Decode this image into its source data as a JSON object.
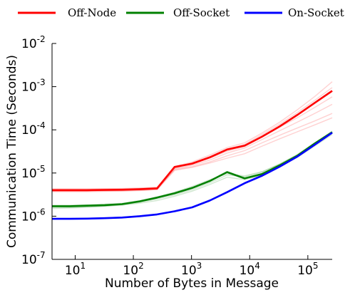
{
  "chart_data": {
    "type": "line",
    "title": "",
    "xlabel": "Number of Bytes in Message",
    "ylabel": "Communication Time (Seconds)",
    "x_scale": "log",
    "y_scale": "log",
    "xlim": [
      4,
      262144
    ],
    "ylim": [
      1e-07,
      0.01
    ],
    "grid": false,
    "legend_position": "top",
    "x_ticks": [
      {
        "value": 10,
        "base": "10",
        "exp": "1"
      },
      {
        "value": 100,
        "base": "10",
        "exp": "2"
      },
      {
        "value": 1000,
        "base": "10",
        "exp": "3"
      },
      {
        "value": 10000,
        "base": "10",
        "exp": "4"
      },
      {
        "value": 100000,
        "base": "10",
        "exp": "5"
      }
    ],
    "y_ticks": [
      {
        "value": 1e-07,
        "base": "10",
        "exp": "-7"
      },
      {
        "value": 1e-06,
        "base": "10",
        "exp": "-6"
      },
      {
        "value": 1e-05,
        "base": "10",
        "exp": "-5"
      },
      {
        "value": 0.0001,
        "base": "10",
        "exp": "-4"
      },
      {
        "value": 0.001,
        "base": "10",
        "exp": "-3"
      },
      {
        "value": 0.01,
        "base": "10",
        "exp": "-2"
      }
    ],
    "x": [
      4,
      8,
      16,
      32,
      64,
      128,
      256,
      512,
      1024,
      2048,
      4096,
      8192,
      16384,
      32768,
      65536,
      131072,
      262144
    ],
    "series": [
      {
        "name": "Off-Node",
        "color": "#ff0000",
        "values": [
          4e-06,
          4e-06,
          4e-06,
          4.05e-06,
          4.1e-06,
          4.2e-06,
          4.4e-06,
          1.38e-05,
          1.65e-05,
          2.3e-05,
          3.5e-05,
          4.3e-05,
          7e-05,
          0.00012,
          0.00022,
          0.00042,
          0.0008
        ]
      },
      {
        "name": "Off-Socket",
        "color": "#008000",
        "values": [
          1.7e-06,
          1.7e-06,
          1.75e-06,
          1.8e-06,
          1.9e-06,
          2.2e-06,
          2.7e-06,
          3.4e-06,
          4.5e-06,
          6.5e-06,
          1.05e-05,
          7.5e-06,
          9.5e-06,
          1.5e-05,
          2.5e-05,
          4.8e-05,
          8.8e-05
        ]
      },
      {
        "name": "On-Socket",
        "color": "#0000ff",
        "values": [
          8.7e-07,
          8.7e-07,
          8.8e-07,
          9e-07,
          9.3e-07,
          1e-06,
          1.1e-06,
          1.3e-06,
          1.6e-06,
          2.3e-06,
          3.6e-06,
          5.8e-06,
          8.7e-06,
          1.4e-05,
          2.4e-05,
          4.5e-05,
          8.6e-05
        ]
      }
    ],
    "faint_series": [
      {
        "color": "#ff0000",
        "values": [
          3.8e-06,
          3.8e-06,
          3.8e-06,
          3.85e-06,
          3.9e-06,
          4e-06,
          4.2e-06,
          1.2e-05,
          1.4e-05,
          1.8e-05,
          2.5e-05,
          3.3e-05,
          5e-05,
          7.5e-05,
          0.00011,
          0.00016,
          0.00024
        ]
      },
      {
        "color": "#ff0000",
        "values": [
          3.9e-06,
          3.9e-06,
          3.9e-06,
          3.95e-06,
          4e-06,
          4.1e-06,
          4.3e-06,
          1.25e-05,
          1.5e-05,
          2e-05,
          2.9e-05,
          3.8e-05,
          6e-05,
          9.5e-05,
          0.00015,
          0.00024,
          0.00039
        ]
      },
      {
        "color": "#ff0000",
        "values": [
          4.1e-06,
          4.1e-06,
          4.1e-06,
          4.15e-06,
          4.2e-06,
          4.3e-06,
          4.5e-06,
          1.3e-05,
          1.6e-05,
          2.2e-05,
          3.2e-05,
          4.1e-05,
          6.8e-05,
          0.000115,
          0.00019,
          0.00033,
          0.00058
        ]
      },
      {
        "color": "#ff0000",
        "values": [
          4.2e-06,
          4.2e-06,
          4.2e-06,
          4.25e-06,
          4.3e-06,
          4.4e-06,
          4.6e-06,
          1.35e-05,
          1.7e-05,
          2.4e-05,
          3.6e-05,
          4.6e-05,
          7.8e-05,
          0.000135,
          0.00025,
          0.00048,
          0.00095
        ]
      },
      {
        "color": "#ff0000",
        "values": [
          4.3e-06,
          4.3e-06,
          4.3e-06,
          4.35e-06,
          4.4e-06,
          4.5e-06,
          4.7e-06,
          1.4e-05,
          1.8e-05,
          2.6e-05,
          3.9e-05,
          5e-05,
          8.5e-05,
          0.00015,
          0.00029,
          0.00059,
          0.0013
        ]
      },
      {
        "color": "#ff0000",
        "values": [
          3.7e-06,
          3.7e-06,
          3.7e-06,
          3.75e-06,
          3.8e-06,
          3.9e-06,
          4.1e-06,
          1.15e-05,
          1.35e-05,
          1.7e-05,
          2.2e-05,
          2.8e-05,
          4.2e-05,
          6.2e-05,
          9e-05,
          0.00013,
          0.00019
        ]
      },
      {
        "color": "#008000",
        "values": [
          1.6e-06,
          1.6e-06,
          1.65e-06,
          1.7e-06,
          1.8e-06,
          2e-06,
          2.3e-06,
          2.9e-06,
          3.8e-06,
          5.4e-06,
          8e-06,
          7e-06,
          9e-06,
          1.4e-05,
          2.3e-05,
          4.2e-05,
          7.8e-05
        ]
      },
      {
        "color": "#008000",
        "values": [
          1.5e-06,
          1.55e-06,
          1.6e-06,
          1.7e-06,
          1.85e-06,
          2.1e-06,
          2.5e-06,
          3.1e-06,
          4.1e-06,
          5.9e-06,
          9e-06,
          8.2e-06,
          1.05e-05,
          1.6e-05,
          2.7e-05,
          5e-05,
          9.4e-05
        ]
      },
      {
        "color": "#008000",
        "values": [
          1.8e-06,
          1.8e-06,
          1.85e-06,
          1.9e-06,
          2e-06,
          2.3e-06,
          2.8e-06,
          3.6e-06,
          4.9e-06,
          7e-06,
          9.6e-06,
          8.6e-06,
          1.08e-05,
          1.62e-05,
          2.6e-05,
          4.9e-05,
          9e-05
        ]
      },
      {
        "color": "#0000ff",
        "values": [
          8.5e-07,
          8.5e-07,
          8.6e-07,
          8.8e-07,
          9.1e-07,
          9.8e-07,
          1.08e-06,
          1.28e-06,
          1.58e-06,
          2.25e-06,
          3.5e-06,
          5.6e-06,
          8.4e-06,
          1.35e-05,
          2.3e-05,
          4.4e-05,
          8.4e-05
        ]
      },
      {
        "color": "#0000ff",
        "values": [
          8.9e-07,
          8.9e-07,
          9e-07,
          9.2e-07,
          9.5e-07,
          1.02e-06,
          1.12e-06,
          1.32e-06,
          1.63e-06,
          2.35e-06,
          3.7e-06,
          6e-06,
          9e-06,
          1.45e-05,
          2.5e-05,
          4.6e-05,
          8.8e-05
        ]
      }
    ]
  }
}
